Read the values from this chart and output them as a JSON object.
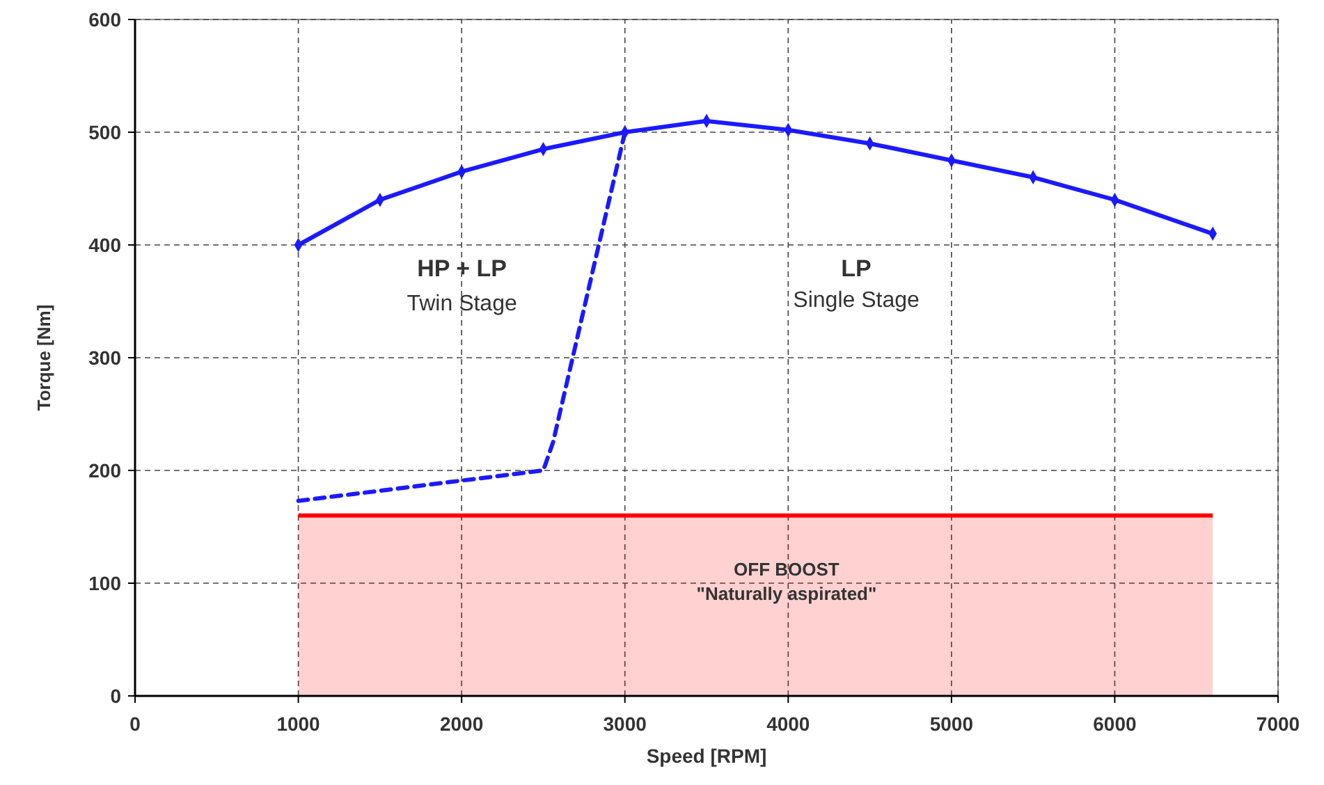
{
  "chart_data": {
    "type": "line",
    "xlabel": "Speed [RPM]",
    "ylabel": "Torque [Nm]",
    "xlim": [
      0,
      7000
    ],
    "xticks": [
      0,
      1000,
      2000,
      3000,
      4000,
      5000,
      6000,
      7000
    ],
    "ylim": [
      0,
      600
    ],
    "yticks": [
      0,
      100,
      200,
      300,
      400,
      500,
      600
    ],
    "grid": true,
    "series": [
      {
        "type": "area",
        "color": "#ff0000",
        "x": [
          1000,
          6600
        ],
        "values": [
          160,
          160
        ]
      },
      {
        "color": "#1a1aff",
        "line_style": "dashed",
        "marker": "none",
        "x": [
          1000,
          2500,
          2560,
          3000
        ],
        "values": [
          173,
          200,
          225,
          500
        ]
      },
      {
        "color": "#1a1aff",
        "line_style": "solid",
        "marker": "diamond",
        "x": [
          1000,
          1500,
          2000,
          2500,
          3000,
          3500,
          4000,
          4500,
          5000,
          5500,
          6000,
          6600
        ],
        "values": [
          400,
          440,
          465,
          485,
          500,
          510,
          502,
          490,
          475,
          460,
          440,
          410
        ]
      }
    ],
    "annotations": [
      "HP + LP",
      "Twin Stage",
      "LP",
      "Single Stage",
      "OFF BOOST",
      "\"Naturally aspirated\""
    ]
  }
}
